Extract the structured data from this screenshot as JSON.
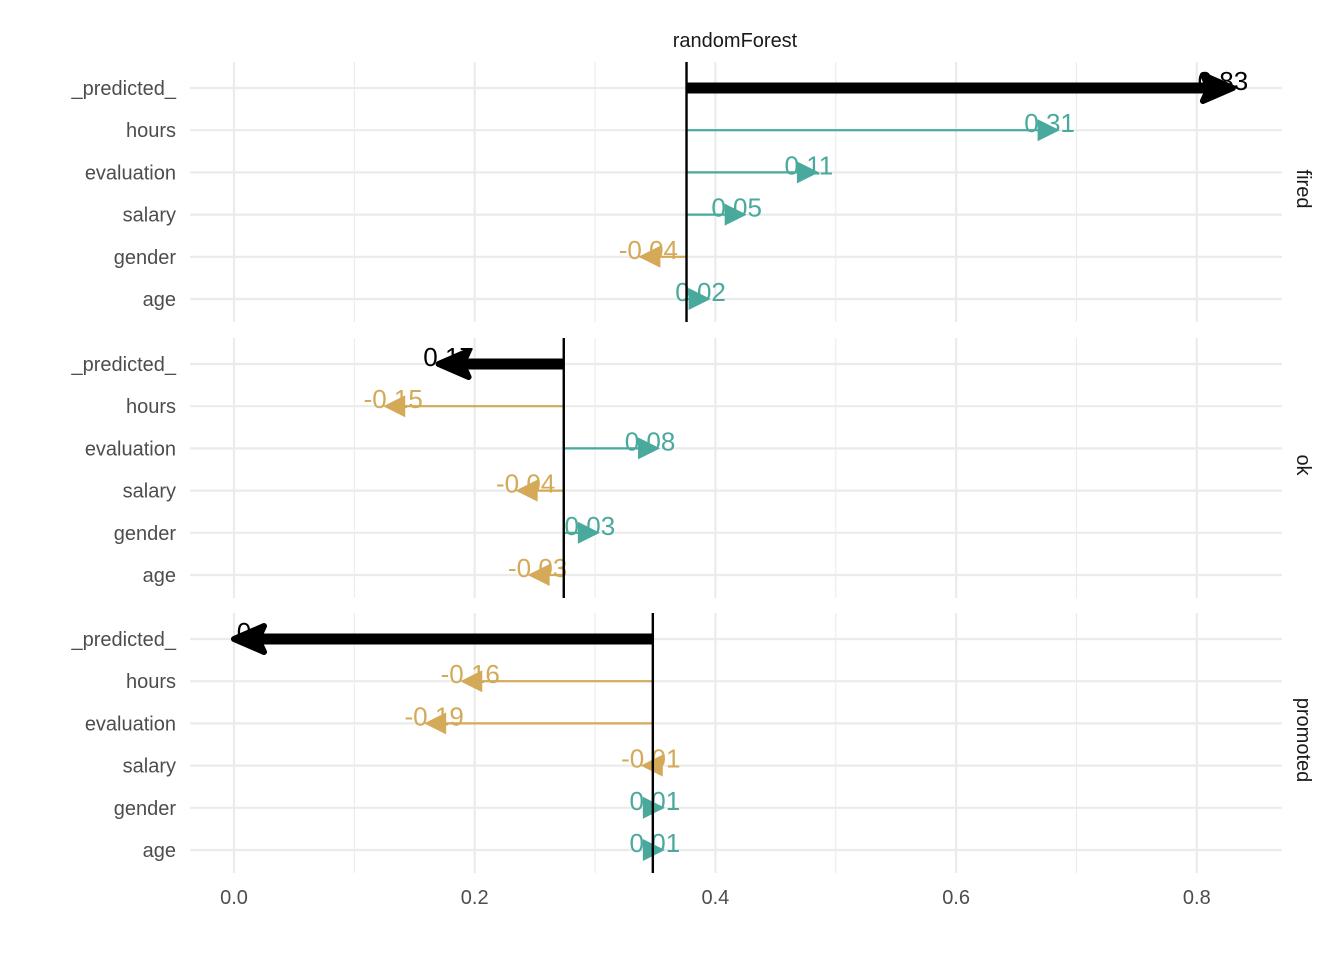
{
  "chart_data": {
    "type": "bar",
    "title": "randomForest",
    "xlabel": "",
    "ylabel": "",
    "xlim": [
      -0.055,
      0.87
    ],
    "xticks": [
      0.0,
      0.2,
      0.4,
      0.6,
      0.8
    ],
    "xtick_labels": [
      "0.0",
      "0.2",
      "0.4",
      "0.6",
      "0.8"
    ],
    "grid": true,
    "colors": {
      "positive": "#4AA99D",
      "negative": "#D4A958",
      "prediction": "#000000",
      "baseline": "#000000"
    },
    "categories": [
      "_predicted_",
      "hours",
      "evaluation",
      "salary",
      "gender",
      "age"
    ],
    "panels": [
      {
        "label": "fired",
        "intercept": 0.376,
        "rows": [
          {
            "variable": "_predicted_",
            "contribution": 0.83,
            "label": "0.83",
            "kind": "prediction"
          },
          {
            "variable": "hours",
            "contribution": 0.31,
            "label": "0.31",
            "kind": "positive"
          },
          {
            "variable": "evaluation",
            "contribution": 0.11,
            "label": "0.11",
            "kind": "positive"
          },
          {
            "variable": "salary",
            "contribution": 0.05,
            "label": "0.05",
            "kind": "positive"
          },
          {
            "variable": "gender",
            "contribution": -0.04,
            "label": "-0.04",
            "kind": "negative"
          },
          {
            "variable": "age",
            "contribution": 0.02,
            "label": "0.02",
            "kind": "positive"
          }
        ]
      },
      {
        "label": "ok",
        "intercept": 0.274,
        "rows": [
          {
            "variable": "_predicted_",
            "contribution": 0.17,
            "label": "0.17",
            "kind": "prediction"
          },
          {
            "variable": "hours",
            "contribution": -0.15,
            "label": "-0.15",
            "kind": "negative"
          },
          {
            "variable": "evaluation",
            "contribution": 0.08,
            "label": "0.08",
            "kind": "positive"
          },
          {
            "variable": "salary",
            "contribution": -0.04,
            "label": "-0.04",
            "kind": "negative"
          },
          {
            "variable": "gender",
            "contribution": 0.03,
            "label": "0.03",
            "kind": "positive"
          },
          {
            "variable": "age",
            "contribution": -0.03,
            "label": "-0.03",
            "kind": "negative"
          }
        ]
      },
      {
        "label": "promoted",
        "intercept": 0.348,
        "rows": [
          {
            "variable": "_predicted_",
            "contribution": 0.0,
            "label": "0",
            "kind": "prediction"
          },
          {
            "variable": "hours",
            "contribution": -0.16,
            "label": "-0.16",
            "kind": "negative"
          },
          {
            "variable": "evaluation",
            "contribution": -0.19,
            "label": "-0.19",
            "kind": "negative"
          },
          {
            "variable": "salary",
            "contribution": -0.01,
            "label": "-0.01",
            "kind": "negative"
          },
          {
            "variable": "gender",
            "contribution": 0.01,
            "label": "0.01",
            "kind": "positive"
          },
          {
            "variable": "age",
            "contribution": 0.01,
            "label": "0.01",
            "kind": "positive"
          }
        ]
      }
    ]
  }
}
